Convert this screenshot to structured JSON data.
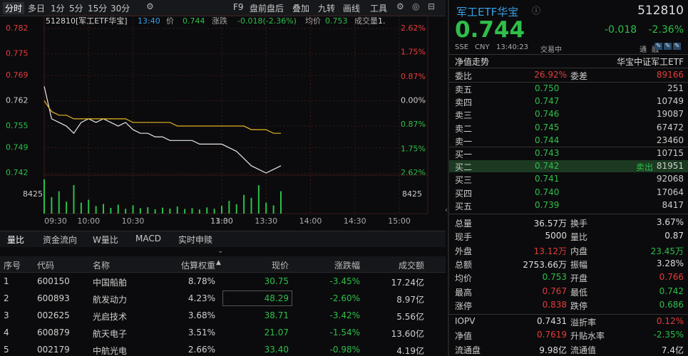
{
  "toolbar": {
    "left": [
      "分时",
      "多日",
      "1分",
      "5分",
      "15分",
      "30分"
    ],
    "right": [
      "F9",
      "盘前盘后",
      "叠加",
      "九转",
      "画线",
      "工具"
    ]
  },
  "chart": {
    "header": [
      "512810[军工ETF华宝]",
      "13:40",
      "价",
      "0.744",
      "涨跌",
      "-0.018(-2.36%)",
      "均价",
      "0.753",
      "成交量",
      "1."
    ],
    "ylim": [
      0.742,
      0.782
    ],
    "yticks": [
      0.782,
      0.775,
      0.769,
      0.762,
      0.755,
      0.749,
      0.742
    ],
    "y2lim": [
      -2.62,
      2.62
    ],
    "y2ticks": [
      {
        "value": 2.62,
        "label": "2.62%"
      },
      {
        "value": 1.75,
        "label": "1.75%"
      },
      {
        "value": 0.87,
        "label": "0.87%"
      },
      {
        "value": 0,
        "label": "0.00%"
      },
      {
        "value": -0.87,
        "label": "0.87%"
      },
      {
        "value": -1.75,
        "label": "1.75%"
      },
      {
        "value": -2.62,
        "label": "2.62%"
      }
    ],
    "xticks": [
      "09:30",
      "10:00",
      "10:30",
      "11:30",
      "13:00",
      "13:30",
      "14:00",
      "14:30",
      "15:00"
    ],
    "vlim": [
      0,
      15600
    ],
    "vticks": [
      8425
    ],
    "x": [
      "09:30",
      "09:35",
      "09:40",
      "09:45",
      "09:50",
      "09:55",
      "10:00",
      "10:05",
      "10:10",
      "10:15",
      "10:20",
      "10:25",
      "10:30",
      "10:35",
      "10:40",
      "10:45",
      "10:50",
      "10:55",
      "11:00",
      "11:05",
      "11:10",
      "11:15",
      "11:20",
      "11:25",
      "11:30",
      "13:05",
      "13:10",
      "13:15",
      "13:20",
      "13:25",
      "13:30",
      "13:35",
      "13:40"
    ],
    "series": [
      {
        "name": "价",
        "color": "#e8e8e8",
        "values": [
          0.766,
          0.757,
          0.756,
          0.755,
          0.753,
          0.756,
          0.757,
          0.756,
          0.757,
          0.756,
          0.755,
          0.756,
          0.754,
          0.753,
          0.753,
          0.752,
          0.752,
          0.751,
          0.751,
          0.751,
          0.751,
          0.75,
          0.75,
          0.75,
          0.75,
          0.749,
          0.748,
          0.746,
          0.744,
          0.743,
          0.742,
          0.743,
          0.744
        ]
      },
      {
        "name": "均价",
        "color": "#e6b422",
        "values": [
          0.762,
          0.759,
          0.758,
          0.758,
          0.757,
          0.757,
          0.757,
          0.757,
          0.757,
          0.757,
          0.757,
          0.757,
          0.756,
          0.756,
          0.756,
          0.756,
          0.756,
          0.756,
          0.755,
          0.755,
          0.755,
          0.755,
          0.755,
          0.755,
          0.755,
          0.755,
          0.755,
          0.755,
          0.754,
          0.754,
          0.754,
          0.753,
          0.753
        ]
      }
    ],
    "volume": {
      "color": "#2fbf4a",
      "values": [
        15000,
        7200,
        9800,
        5200,
        12500,
        4800,
        6100,
        3300,
        4200,
        2500,
        3900,
        2100,
        3600,
        2400,
        2800,
        1900,
        2600,
        2200,
        3100,
        2000,
        2400,
        1800,
        2700,
        2100,
        3400,
        5600,
        4100,
        8200,
        6900,
        12400,
        4800,
        3600,
        9800
      ]
    }
  },
  "tabs": [
    "量比",
    "资金流向",
    "W量比",
    "MACD",
    "实时申赎"
  ],
  "table": {
    "header": [
      "序号",
      "代码",
      "名称",
      "估算权重",
      "现价",
      "涨跌幅",
      "成交额"
    ],
    "rows": [
      [
        "1",
        "600150",
        "中国船舶",
        "8.78%",
        "30.75",
        "-3.45%",
        "17.24亿"
      ],
      [
        "2",
        "600893",
        "航发动力",
        "4.23%",
        "48.29",
        "-2.60%",
        "8.97亿"
      ],
      [
        "3",
        "002625",
        "光启技术",
        "3.68%",
        "38.71",
        "-3.42%",
        "5.56亿"
      ],
      [
        "4",
        "600879",
        "航天电子",
        "3.51%",
        "21.07",
        "-1.54%",
        "13.60亿"
      ],
      [
        "5",
        "002179",
        "中航光电",
        "2.66%",
        "33.40",
        "-0.98%",
        "4.19亿"
      ]
    ]
  },
  "quote": {
    "name": "军工ETF华宝",
    "code": "512810",
    "price": "0.744",
    "change": "-0.018",
    "pct": "-2.36%",
    "meta": [
      "SSE",
      "CNY",
      "13:40:23",
      "交易中"
    ],
    "badges": [
      "通",
      "融"
    ],
    "tabs": [
      "净值走势",
      "华宝中证军工ETF"
    ],
    "weibi": [
      "委比",
      "26.92%",
      "委差",
      "89166"
    ],
    "asks": [
      [
        "卖五",
        "0.750",
        "251"
      ],
      [
        "卖四",
        "0.747",
        "10749"
      ],
      [
        "卖三",
        "0.746",
        "19087"
      ],
      [
        "卖二",
        "0.745",
        "67472"
      ],
      [
        "卖一",
        "0.744",
        "23460"
      ]
    ],
    "bids": [
      [
        "买一",
        "0.743",
        "10715"
      ],
      [
        "买二",
        "0.742",
        "81951"
      ],
      [
        "买三",
        "0.741",
        "92068"
      ],
      [
        "买四",
        "0.740",
        "17064"
      ],
      [
        "买五",
        "0.739",
        "8417"
      ]
    ],
    "sell_tag": "卖出",
    "stats": [
      [
        "总量",
        "36.57万",
        "换手",
        "3.67%"
      ],
      [
        "现手",
        "5000",
        "量比",
        "0.87"
      ],
      [
        "外盘",
        "13.12万",
        "内盘",
        "23.45万"
      ],
      [
        "总额",
        "2753.66万",
        "振幅",
        "3.28%"
      ],
      [
        "均价",
        "0.753",
        "开盘",
        "0.766"
      ],
      [
        "最高",
        "0.767",
        "最低",
        "0.742"
      ],
      [
        "涨停",
        "0.838",
        "跌停",
        "0.686"
      ],
      [
        "IOPV",
        "0.7431",
        "溢折率",
        "0.12%"
      ],
      [
        "净值",
        "0.7619",
        "升贴水率",
        "-2.35%"
      ],
      [
        "流通盘",
        "9.98亿",
        "流通值",
        "7.4亿"
      ]
    ]
  }
}
